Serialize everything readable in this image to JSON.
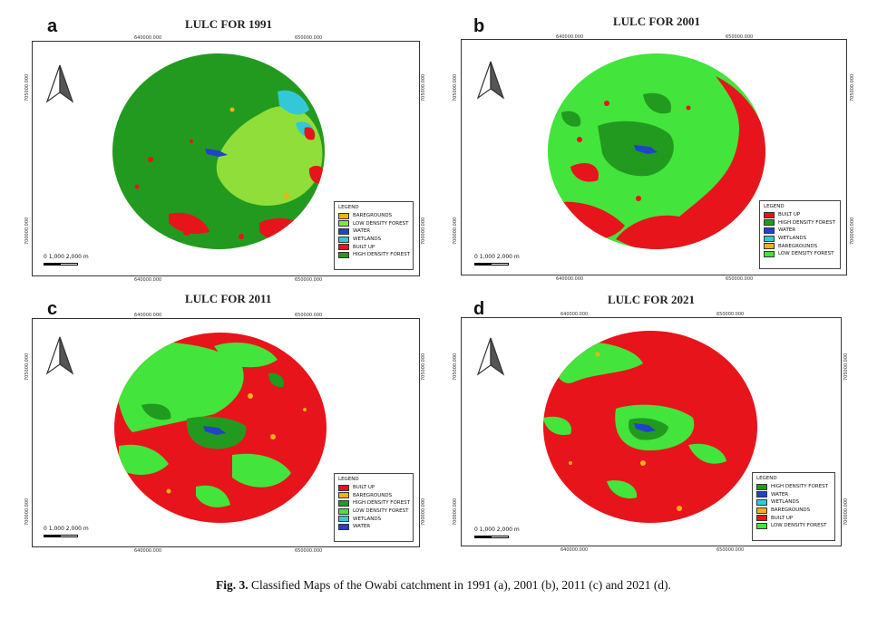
{
  "colors": {
    "built_up": "#e8141b",
    "high_density_forest": "#229a1f",
    "low_density_forest": "#43e43c",
    "low_density_forest_1991": "#8fde3a",
    "water": "#2043c8",
    "wetlands": "#33c8d8",
    "baregrounds": "#f2b01c"
  },
  "panels": [
    {
      "id": "a",
      "letter": "a",
      "title": "LULC FOR 1991",
      "ticks_top": [
        "640000.000",
        "650000.000"
      ],
      "ticks_bottom": [
        "640000.000",
        "650000.000"
      ],
      "ticks_left": [
        "705000.000",
        "700000.000"
      ],
      "ticks_right": [
        "705000.000",
        "700000.000"
      ],
      "scale_label": "0   1,000 2,000 m",
      "legend_title": "LEGEND",
      "legend": [
        {
          "label": "BAREGROUNDS",
          "color": "#f2b01c"
        },
        {
          "label": "LOW DENSITY FOREST",
          "color": "#8fde3a"
        },
        {
          "label": "WATER",
          "color": "#2043c8"
        },
        {
          "label": "WETLANDS",
          "color": "#33c8d8"
        },
        {
          "label": "BUILT UP",
          "color": "#e8141b"
        },
        {
          "label": "HIGH DENSITY FOREST",
          "color": "#229a1f"
        }
      ]
    },
    {
      "id": "b",
      "letter": "b",
      "title": "LULC FOR 2001",
      "ticks_top": [
        "640000.000",
        "650000.000"
      ],
      "ticks_bottom": [
        "640000.000",
        "650000.000"
      ],
      "ticks_left": [
        "705000.000",
        "700000.000"
      ],
      "ticks_right": [
        "705000.000",
        "700000.000"
      ],
      "scale_label": "0   1,000 2,000 m",
      "legend_title": "LEGEND",
      "legend": [
        {
          "label": "BUILT UP",
          "color": "#e8141b"
        },
        {
          "label": "HIGH DENSITY FOREST",
          "color": "#229a1f"
        },
        {
          "label": "WATER",
          "color": "#2043c8"
        },
        {
          "label": "WETLANDS",
          "color": "#33c8d8"
        },
        {
          "label": "BAREGROUNDS",
          "color": "#f2b01c"
        },
        {
          "label": "LOW DENSITY FOREST",
          "color": "#43e43c"
        }
      ]
    },
    {
      "id": "c",
      "letter": "c",
      "title": "LULC FOR 2011",
      "ticks_top": [
        "640000.000",
        "650000.000"
      ],
      "ticks_bottom": [
        "640000.000",
        "650000.000"
      ],
      "ticks_left": [
        "705000.000",
        "700000.000"
      ],
      "ticks_right": [
        "705000.000",
        "700000.000"
      ],
      "scale_label": "0   1,000 2,000 m",
      "legend_title": "LEGEND",
      "legend": [
        {
          "label": "BUILT UP",
          "color": "#e8141b"
        },
        {
          "label": "BAREGROUNDS",
          "color": "#f2b01c"
        },
        {
          "label": "HIGH DENSITY FOREST",
          "color": "#229a1f"
        },
        {
          "label": "LOW DENSITY FOREST",
          "color": "#43e43c"
        },
        {
          "label": "WETLANDS",
          "color": "#33c8d8"
        },
        {
          "label": "WATER",
          "color": "#2043c8"
        }
      ]
    },
    {
      "id": "d",
      "letter": "d",
      "title": "LULC FOR 2021",
      "ticks_top": [
        "640000.000",
        "650000.000"
      ],
      "ticks_bottom": [
        "640000.000",
        "650000.000"
      ],
      "ticks_left": [
        "705000.000",
        "700000.000"
      ],
      "ticks_right": [
        "705000.000",
        "700000.000"
      ],
      "scale_label": "0   1,000 2,000 m",
      "legend_title": "LEGEND",
      "legend": [
        {
          "label": "HIGH DENSITY FOREST",
          "color": "#229a1f"
        },
        {
          "label": "WATER",
          "color": "#2043c8"
        },
        {
          "label": "WETLANDS",
          "color": "#33c8d8"
        },
        {
          "label": "BAREGROUNDS",
          "color": "#f2b01c"
        },
        {
          "label": "BUILT UP",
          "color": "#e8141b"
        },
        {
          "label": "LOW DENSITY FOREST",
          "color": "#43e43c"
        }
      ]
    }
  ],
  "caption": {
    "label": "Fig. 3.",
    "text": "Classified Maps of the Owabi catchment in 1991 (a), 2001 (b), 2011 (c) and 2021 (d)."
  }
}
